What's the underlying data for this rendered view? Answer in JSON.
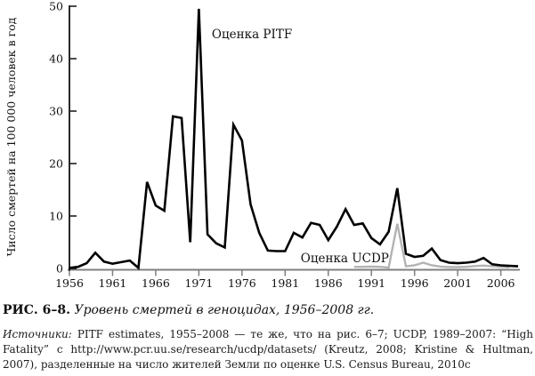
{
  "figure": {
    "caption_label": "РИС. 6–8.",
    "caption_title": "Уровень смертей в геноцидах, 1956–2008 гг.",
    "sources_label": "Источники:",
    "sources_text": " PITF estimates, 1955–2008 — те же, что на рис. 6–7; UCDP, 1989–2007: “High Fatality” с http://www.pcr.uu.se/research/ucdp/datasets/ (Kreutz, 2008; Kristine & Hultman, 2007), разделенные на число жителей Земли по оценке U.S. Census Bureau, 2010c"
  },
  "chart_data": {
    "type": "line",
    "title": "",
    "xlabel": "",
    "ylabel": "Число смертей на 100 000 человек в год",
    "xlim": [
      1956,
      2008
    ],
    "ylim": [
      0,
      50
    ],
    "xticks": [
      1956,
      1961,
      1966,
      1971,
      1976,
      1981,
      1986,
      1991,
      1996,
      2001,
      2006
    ],
    "yticks": [
      0,
      10,
      20,
      30,
      40,
      50
    ],
    "grid": false,
    "legend_position": "inline-annotations",
    "annotations": [
      {
        "id": "pitf-label",
        "text": "Оценка PITF",
        "x": 1972.5,
        "y": 43.9,
        "anchor": "start"
      },
      {
        "id": "ucdp-label",
        "text": "Оценка UCDP",
        "x": 1982.8,
        "y": 1.2,
        "anchor": "start"
      }
    ],
    "series": [
      {
        "name": "UCDP",
        "color": "#b3b3b3",
        "width": 2.4,
        "points": [
          [
            1989,
            0.3
          ],
          [
            1990,
            0.3
          ],
          [
            1991,
            0.35
          ],
          [
            1992,
            0.3
          ],
          [
            1993,
            0.15
          ],
          [
            1994,
            8.5
          ],
          [
            1995,
            0.4
          ],
          [
            1996,
            0.6
          ],
          [
            1997,
            1.1
          ],
          [
            1998,
            0.6
          ],
          [
            1999,
            0.35
          ],
          [
            2000,
            0.25
          ],
          [
            2001,
            0.25
          ],
          [
            2002,
            0.3
          ],
          [
            2003,
            0.45
          ],
          [
            2004,
            0.55
          ],
          [
            2005,
            0.4
          ],
          [
            2006,
            0.3
          ],
          [
            2007,
            0.25
          ]
        ]
      },
      {
        "name": "PITF",
        "color": "#000000",
        "width": 2.6,
        "points": [
          [
            1956,
            0.1
          ],
          [
            1957,
            0.3
          ],
          [
            1958,
            1.0
          ],
          [
            1959,
            3.0
          ],
          [
            1960,
            1.3
          ],
          [
            1961,
            0.9
          ],
          [
            1962,
            1.2
          ],
          [
            1963,
            1.5
          ],
          [
            1964,
            0.1
          ],
          [
            1965,
            16.5
          ],
          [
            1966,
            12.0
          ],
          [
            1967,
            11.0
          ],
          [
            1968,
            29.0
          ],
          [
            1969,
            28.7
          ],
          [
            1970,
            5.0
          ],
          [
            1971,
            49.5
          ],
          [
            1972,
            6.5
          ],
          [
            1973,
            4.8
          ],
          [
            1974,
            4.0
          ],
          [
            1975,
            27.4
          ],
          [
            1976,
            24.4
          ],
          [
            1977,
            12.2
          ],
          [
            1978,
            6.8
          ],
          [
            1979,
            3.4
          ],
          [
            1980,
            3.3
          ],
          [
            1981,
            3.3
          ],
          [
            1982,
            6.8
          ],
          [
            1983,
            5.9
          ],
          [
            1984,
            8.7
          ],
          [
            1985,
            8.3
          ],
          [
            1986,
            5.4
          ],
          [
            1987,
            8.0
          ],
          [
            1988,
            11.3
          ],
          [
            1989,
            8.3
          ],
          [
            1990,
            8.6
          ],
          [
            1991,
            5.8
          ],
          [
            1992,
            4.6
          ],
          [
            1993,
            7.0
          ],
          [
            1994,
            15.3
          ],
          [
            1995,
            2.8
          ],
          [
            1996,
            2.2
          ],
          [
            1997,
            2.4
          ],
          [
            1998,
            3.8
          ],
          [
            1999,
            1.6
          ],
          [
            2000,
            1.1
          ],
          [
            2001,
            1.0
          ],
          [
            2002,
            1.1
          ],
          [
            2003,
            1.3
          ],
          [
            2004,
            2.0
          ],
          [
            2005,
            0.8
          ],
          [
            2006,
            0.6
          ],
          [
            2007,
            0.5
          ],
          [
            2008,
            0.4
          ]
        ]
      }
    ]
  },
  "style": {
    "xaxis_color": "#7f7f7f",
    "yaxis_color": "#111111",
    "text_color": "#111111",
    "background": "#ffffff"
  }
}
